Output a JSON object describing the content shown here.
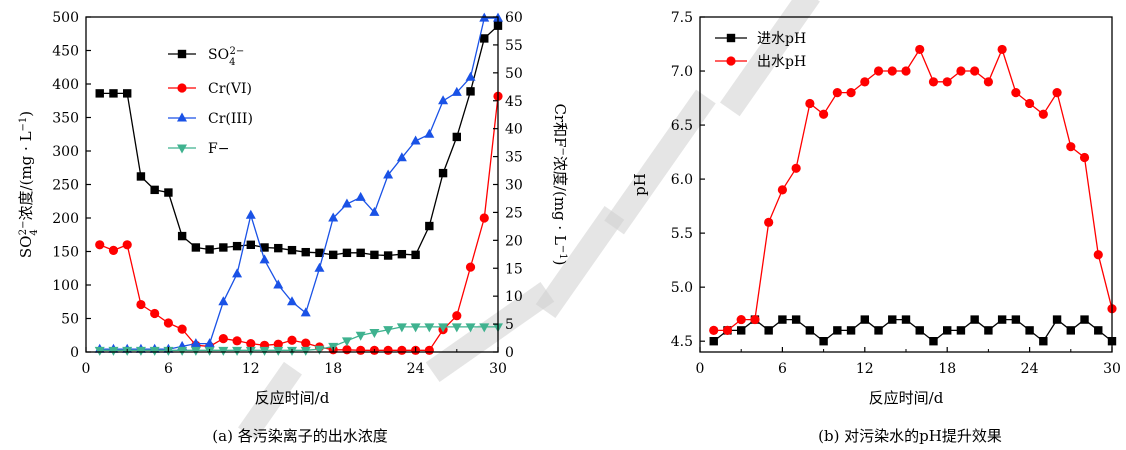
{
  "chart_data": [
    {
      "type": "line",
      "caption": "(a) 各污染离子的出水浓度",
      "xlabel": "反应时间/d",
      "xlim": [
        0,
        30
      ],
      "xticks": [
        0,
        6,
        12,
        18,
        24,
        30
      ],
      "ylabel_left_parts": [
        "SO",
        "4",
        "2−",
        "浓度/(mg · L",
        "−1",
        ")"
      ],
      "ylim_left": [
        0,
        500
      ],
      "yticks_left": [
        0,
        50,
        100,
        150,
        200,
        250,
        300,
        350,
        400,
        450,
        500
      ],
      "ylabel_right_parts": [
        "Cr和F",
        "−",
        "浓度/(mg · L",
        "−1",
        ")"
      ],
      "ylim_right": [
        0,
        60
      ],
      "yticks_right": [
        0,
        5,
        10,
        15,
        20,
        25,
        30,
        35,
        40,
        45,
        50,
        55,
        60
      ],
      "grid": false,
      "legend_position": "top-left",
      "series": [
        {
          "name_parts": [
            "SO",
            "4",
            "2−"
          ],
          "axis": "left",
          "color": "#000000",
          "marker": "square",
          "x": [
            1,
            2,
            3,
            4,
            5,
            6,
            7,
            8,
            9,
            10,
            11,
            12,
            13,
            14,
            15,
            16,
            17,
            18,
            19,
            20,
            21,
            22,
            23,
            24,
            25,
            26,
            27,
            28,
            29,
            30
          ],
          "y": [
            386,
            386,
            386,
            262,
            242,
            238,
            173,
            156,
            153,
            156,
            158,
            160,
            156,
            155,
            152,
            149,
            148,
            145,
            148,
            148,
            145,
            144,
            146,
            145,
            188,
            267,
            321,
            389,
            468,
            487
          ]
        },
        {
          "name": "Cr(VI)",
          "axis": "right",
          "color": "#ff0000",
          "marker": "circle",
          "x": [
            1,
            2,
            3,
            4,
            5,
            6,
            7,
            8,
            9,
            10,
            11,
            12,
            13,
            14,
            15,
            16,
            17,
            18,
            19,
            20,
            21,
            22,
            23,
            24,
            25,
            26,
            27,
            28,
            29,
            30
          ],
          "y": [
            19.2,
            18.2,
            19.2,
            8.5,
            6.9,
            5.2,
            4.1,
            1.2,
            1.0,
            2.4,
            2.0,
            1.5,
            1.2,
            1.4,
            2.1,
            1.6,
            0.9,
            0.4,
            0.4,
            0.3,
            0.3,
            0.3,
            0.3,
            0.3,
            0.3,
            4.0,
            6.5,
            15.2,
            24.0,
            45.8
          ]
        },
        {
          "name": "Cr(III)",
          "axis": "right",
          "color": "#1a52e6",
          "marker": "triangle-up",
          "x": [
            1,
            2,
            3,
            4,
            5,
            6,
            7,
            8,
            9,
            10,
            11,
            12,
            13,
            14,
            15,
            16,
            17,
            18,
            19,
            20,
            21,
            22,
            23,
            24,
            25,
            26,
            27,
            28,
            29,
            30
          ],
          "y": [
            0.5,
            0.5,
            0.5,
            0.5,
            0.5,
            0.5,
            1.0,
            1.5,
            1.5,
            9.0,
            14.0,
            24.5,
            16.5,
            12.0,
            9.0,
            7.0,
            15.0,
            24.0,
            26.5,
            27.7,
            25.0,
            31.7,
            34.8,
            37.8,
            39.0,
            45.0,
            46.5,
            49.2,
            59.8,
            59.8
          ]
        },
        {
          "name": "F−",
          "axis": "right",
          "color": "#3fb28f",
          "marker": "triangle-down",
          "x": [
            1,
            2,
            3,
            4,
            5,
            6,
            7,
            8,
            9,
            10,
            11,
            12,
            13,
            14,
            15,
            16,
            17,
            18,
            19,
            20,
            21,
            22,
            23,
            24,
            25,
            26,
            27,
            28,
            29,
            30
          ],
          "y": [
            0.3,
            0.3,
            0.3,
            0.3,
            0.3,
            0.3,
            0.3,
            0.3,
            0.3,
            0.3,
            0.3,
            0.3,
            0.3,
            0.3,
            0.3,
            0.3,
            0.5,
            1.0,
            2.0,
            3.0,
            3.5,
            4.0,
            4.5,
            4.5,
            4.5,
            4.5,
            4.5,
            4.5,
            4.5,
            4.5
          ]
        }
      ]
    },
    {
      "type": "line",
      "caption": "(b) 对污染水的pH提升效果",
      "xlabel": "反应时间/d",
      "ylabel": "pH",
      "xlim": [
        0,
        30
      ],
      "xticks": [
        0,
        6,
        12,
        18,
        24,
        30
      ],
      "ylim": [
        4.4,
        7.5
      ],
      "yticks": [
        4.5,
        5.0,
        5.5,
        6.0,
        6.5,
        7.0,
        7.5
      ],
      "grid": false,
      "legend_position": "top-left",
      "series": [
        {
          "name": "进水pH",
          "color": "#000000",
          "marker": "square",
          "x": [
            1,
            2,
            3,
            4,
            5,
            6,
            7,
            8,
            9,
            10,
            11,
            12,
            13,
            14,
            15,
            16,
            17,
            18,
            19,
            20,
            21,
            22,
            23,
            24,
            25,
            26,
            27,
            28,
            29,
            30
          ],
          "y": [
            4.5,
            4.6,
            4.6,
            4.7,
            4.6,
            4.7,
            4.7,
            4.6,
            4.5,
            4.6,
            4.6,
            4.7,
            4.6,
            4.7,
            4.7,
            4.6,
            4.5,
            4.6,
            4.6,
            4.7,
            4.6,
            4.7,
            4.7,
            4.6,
            4.5,
            4.7,
            4.6,
            4.7,
            4.6,
            4.5
          ]
        },
        {
          "name": "出水pH",
          "color": "#ff0000",
          "marker": "circle",
          "x": [
            1,
            2,
            3,
            4,
            5,
            6,
            7,
            8,
            9,
            10,
            11,
            12,
            13,
            14,
            15,
            16,
            17,
            18,
            19,
            20,
            21,
            22,
            23,
            24,
            25,
            26,
            27,
            28,
            29,
            30
          ],
          "y": [
            4.6,
            4.6,
            4.7,
            4.7,
            5.6,
            5.9,
            6.1,
            6.7,
            6.6,
            6.8,
            6.8,
            6.9,
            7.0,
            7.0,
            7.0,
            7.2,
            6.9,
            6.9,
            7.0,
            7.0,
            6.9,
            7.2,
            6.8,
            6.7,
            6.6,
            6.8,
            6.3,
            6.2,
            5.3,
            4.8
          ]
        }
      ]
    }
  ]
}
